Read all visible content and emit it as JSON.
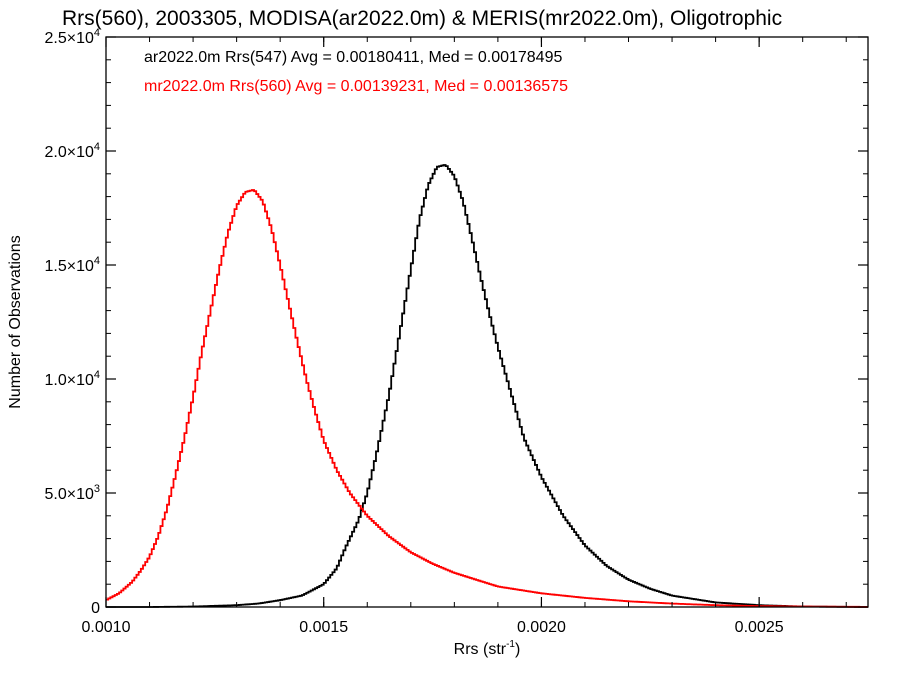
{
  "chart_data": {
    "type": "line",
    "title": "Rrs(560), 2003305, MODISA(ar2022.0m) & MERIS(mr2022.0m), Oligotrophic",
    "xlabel": "Rrs (str",
    "xlabel_superscript": "-1",
    "xlabel_suffix": ")",
    "ylabel": "Number of Observations",
    "xlim": [
      0.001,
      0.00275
    ],
    "ylim": [
      0,
      25000
    ],
    "x_ticks": [
      0.001,
      0.0015,
      0.002,
      0.0025
    ],
    "x_tick_labels": [
      "0.0010",
      "0.0015",
      "0.0020",
      "0.0025"
    ],
    "y_ticks": [
      0,
      5000,
      10000,
      15000,
      20000,
      25000
    ],
    "y_tick_labels": [
      {
        "text": "0",
        "mant": "",
        "exp": ""
      },
      {
        "text": "",
        "mant": "5.0×10",
        "exp": "3"
      },
      {
        "text": "",
        "mant": "1.0×10",
        "exp": "4"
      },
      {
        "text": "",
        "mant": "1.5×10",
        "exp": "4"
      },
      {
        "text": "",
        "mant": "2.0×10",
        "exp": "4"
      },
      {
        "text": "",
        "mant": "2.5×10",
        "exp": "4"
      }
    ],
    "grid": false,
    "legend_position": "top-left",
    "series": [
      {
        "name": "ar2022.0m Rrs(547) Avg = 0.00180411, Med = 0.00178495",
        "color": "#000000",
        "x": [
          0.001,
          0.0011,
          0.0012,
          0.0013,
          0.00135,
          0.0014,
          0.00145,
          0.0015,
          0.00153,
          0.00155,
          0.00158,
          0.0016,
          0.00162,
          0.00165,
          0.00168,
          0.0017,
          0.00172,
          0.00174,
          0.00176,
          0.00178,
          0.0018,
          0.00182,
          0.00184,
          0.00186,
          0.00188,
          0.0019,
          0.00193,
          0.00196,
          0.002,
          0.00205,
          0.0021,
          0.00215,
          0.0022,
          0.00225,
          0.0023,
          0.0024,
          0.0025,
          0.0026,
          0.00275
        ],
        "y": [
          0,
          0,
          20,
          80,
          150,
          300,
          500,
          1000,
          1700,
          2600,
          3800,
          5000,
          6600,
          9300,
          12600,
          14800,
          17000,
          18500,
          19300,
          19400,
          18900,
          17800,
          16200,
          14500,
          12900,
          11400,
          9400,
          7400,
          5700,
          4000,
          2700,
          1800,
          1200,
          800,
          500,
          200,
          80,
          20,
          0
        ]
      },
      {
        "name": "mr2022.0m Rrs(560) Avg = 0.00139231, Med = 0.00136575",
        "color": "#ff0000",
        "x": [
          0.001,
          0.00103,
          0.00106,
          0.00108,
          0.0011,
          0.00112,
          0.00114,
          0.00116,
          0.00118,
          0.0012,
          0.00122,
          0.00124,
          0.00126,
          0.00128,
          0.0013,
          0.00132,
          0.00134,
          0.00136,
          0.00138,
          0.0014,
          0.00142,
          0.00144,
          0.00146,
          0.00148,
          0.0015,
          0.00153,
          0.00156,
          0.0016,
          0.00165,
          0.0017,
          0.00175,
          0.0018,
          0.00185,
          0.0019,
          0.002,
          0.0021,
          0.0022,
          0.0023,
          0.0024,
          0.0025,
          0.0026,
          0.00275
        ],
        "y": [
          300,
          600,
          1100,
          1600,
          2200,
          3100,
          4300,
          5800,
          7400,
          9200,
          11200,
          13000,
          14800,
          16400,
          17600,
          18200,
          18300,
          17800,
          16600,
          15000,
          13300,
          11600,
          10000,
          8600,
          7300,
          6000,
          5000,
          4000,
          3100,
          2400,
          1900,
          1500,
          1200,
          900,
          600,
          400,
          250,
          150,
          80,
          40,
          20,
          5
        ]
      }
    ]
  }
}
